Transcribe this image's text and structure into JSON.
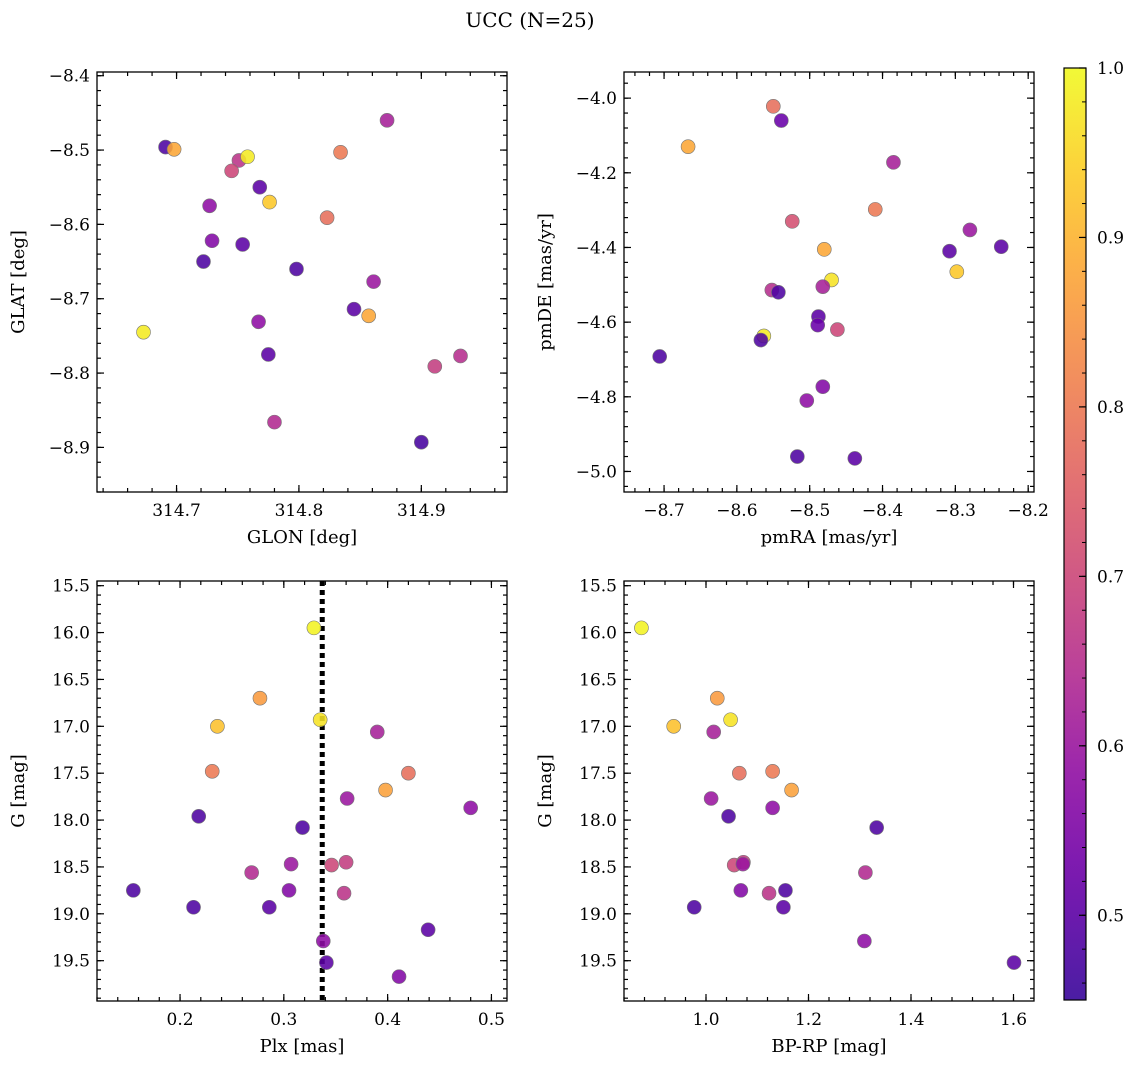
{
  "figure": {
    "title": "UCC (N=25)"
  },
  "colorbar": {
    "colormap": "plasma",
    "range": [
      0.45,
      1.0
    ],
    "ticks": [
      "0.5",
      "0.6",
      "0.7",
      "0.8",
      "0.9",
      "1.0"
    ],
    "tick_values": [
      0.5,
      0.6,
      0.7,
      0.8,
      0.9,
      1.0
    ]
  },
  "chart_data": [
    {
      "type": "scatter",
      "xlabel": "GLON [deg]",
      "ylabel": "GLAT [deg]",
      "xlim": [
        314.635,
        314.97
      ],
      "ylim": [
        -8.96,
        -8.395
      ],
      "xticks": [
        314.7,
        314.8,
        314.9
      ],
      "xtick_labels": [
        "314.7",
        "314.8",
        "314.9"
      ],
      "yticks": [
        -8.4,
        -8.5,
        -8.6,
        -8.7,
        -8.8,
        -8.9
      ],
      "ytick_labels": [
        "−8.4",
        "−8.5",
        "−8.6",
        "−8.7",
        "−8.8",
        "−8.9"
      ],
      "points": [
        {
          "x": 314.691,
          "y": -8.496,
          "c": 0.48
        },
        {
          "x": 314.698,
          "y": -8.499,
          "c": 0.88
        },
        {
          "x": 314.751,
          "y": -8.514,
          "c": 0.66
        },
        {
          "x": 314.758,
          "y": -8.509,
          "c": 0.98
        },
        {
          "x": 314.745,
          "y": -8.528,
          "c": 0.7
        },
        {
          "x": 314.834,
          "y": -8.503,
          "c": 0.8
        },
        {
          "x": 314.872,
          "y": -8.46,
          "c": 0.62
        },
        {
          "x": 314.768,
          "y": -8.55,
          "c": 0.5
        },
        {
          "x": 314.776,
          "y": -8.57,
          "c": 0.93
        },
        {
          "x": 314.727,
          "y": -8.575,
          "c": 0.58
        },
        {
          "x": 314.823,
          "y": -8.591,
          "c": 0.78
        },
        {
          "x": 314.729,
          "y": -8.622,
          "c": 0.56
        },
        {
          "x": 314.754,
          "y": -8.627,
          "c": 0.5
        },
        {
          "x": 314.722,
          "y": -8.65,
          "c": 0.48
        },
        {
          "x": 314.798,
          "y": -8.66,
          "c": 0.48
        },
        {
          "x": 314.861,
          "y": -8.677,
          "c": 0.6
        },
        {
          "x": 314.845,
          "y": -8.714,
          "c": 0.5
        },
        {
          "x": 314.857,
          "y": -8.723,
          "c": 0.88
        },
        {
          "x": 314.767,
          "y": -8.731,
          "c": 0.58
        },
        {
          "x": 314.673,
          "y": -8.745,
          "c": 0.98
        },
        {
          "x": 314.775,
          "y": -8.775,
          "c": 0.5
        },
        {
          "x": 314.932,
          "y": -8.777,
          "c": 0.65
        },
        {
          "x": 314.911,
          "y": -8.791,
          "c": 0.68
        },
        {
          "x": 314.78,
          "y": -8.866,
          "c": 0.64
        },
        {
          "x": 314.9,
          "y": -8.893,
          "c": 0.47
        }
      ]
    },
    {
      "type": "scatter",
      "xlabel": "pmRA [mas/yr]",
      "ylabel": "pmDE [mas/yr]",
      "xlim": [
        -8.755,
        -8.192
      ],
      "ylim": [
        -5.055,
        -3.93
      ],
      "xticks": [
        -8.7,
        -8.6,
        -8.5,
        -8.4,
        -8.3,
        -8.2
      ],
      "xtick_labels": [
        "−8.7",
        "−8.6",
        "−8.5",
        "−8.4",
        "−8.3",
        "−8.2"
      ],
      "yticks": [
        -4.0,
        -4.2,
        -4.4,
        -4.6,
        -4.8,
        -5.0
      ],
      "ytick_labels": [
        "−4.0",
        "−4.2",
        "−4.4",
        "−4.6",
        "−4.8",
        "−5.0"
      ],
      "points": [
        {
          "x": -8.55,
          "y": -4.022,
          "c": 0.78
        },
        {
          "x": -8.539,
          "y": -4.06,
          "c": 0.52
        },
        {
          "x": -8.667,
          "y": -4.13,
          "c": 0.88
        },
        {
          "x": -8.385,
          "y": -4.172,
          "c": 0.62
        },
        {
          "x": -8.41,
          "y": -4.298,
          "c": 0.8
        },
        {
          "x": -8.524,
          "y": -4.33,
          "c": 0.72
        },
        {
          "x": -8.28,
          "y": -4.353,
          "c": 0.6
        },
        {
          "x": -8.308,
          "y": -4.41,
          "c": 0.5
        },
        {
          "x": -8.237,
          "y": -4.398,
          "c": 0.5
        },
        {
          "x": -8.48,
          "y": -4.405,
          "c": 0.88
        },
        {
          "x": -8.298,
          "y": -4.465,
          "c": 0.93
        },
        {
          "x": -8.47,
          "y": -4.487,
          "c": 0.97
        },
        {
          "x": -8.552,
          "y": -4.514,
          "c": 0.65
        },
        {
          "x": -8.543,
          "y": -4.52,
          "c": 0.48
        },
        {
          "x": -8.482,
          "y": -4.505,
          "c": 0.62
        },
        {
          "x": -8.488,
          "y": -4.585,
          "c": 0.5
        },
        {
          "x": -8.489,
          "y": -4.608,
          "c": 0.52
        },
        {
          "x": -8.462,
          "y": -4.62,
          "c": 0.7
        },
        {
          "x": -8.563,
          "y": -4.637,
          "c": 0.98
        },
        {
          "x": -8.567,
          "y": -4.648,
          "c": 0.48
        },
        {
          "x": -8.706,
          "y": -4.692,
          "c": 0.48
        },
        {
          "x": -8.482,
          "y": -4.773,
          "c": 0.56
        },
        {
          "x": -8.504,
          "y": -4.81,
          "c": 0.58
        },
        {
          "x": -8.517,
          "y": -4.96,
          "c": 0.48
        },
        {
          "x": -8.438,
          "y": -4.965,
          "c": 0.5
        }
      ]
    },
    {
      "type": "scatter",
      "xlabel": "Plx [mas]",
      "ylabel": "G [mag]",
      "xlim": [
        0.12,
        0.515
      ],
      "ylim": [
        19.93,
        15.45
      ],
      "xticks": [
        0.2,
        0.3,
        0.4,
        0.5
      ],
      "xtick_labels": [
        "0.2",
        "0.3",
        "0.4",
        "0.5"
      ],
      "yticks": [
        15.5,
        16.0,
        16.5,
        17.0,
        17.5,
        18.0,
        18.5,
        19.0,
        19.5
      ],
      "ytick_labels": [
        "15.5",
        "16.0",
        "16.5",
        "17.0",
        "17.5",
        "18.0",
        "18.5",
        "19.0",
        "19.5"
      ],
      "vline": 0.337,
      "points": [
        {
          "x": 0.329,
          "y": 15.95,
          "c": 0.99
        },
        {
          "x": 0.277,
          "y": 16.7,
          "c": 0.86
        },
        {
          "x": 0.236,
          "y": 17.0,
          "c": 0.92
        },
        {
          "x": 0.335,
          "y": 16.93,
          "c": 0.97
        },
        {
          "x": 0.39,
          "y": 17.06,
          "c": 0.62
        },
        {
          "x": 0.231,
          "y": 17.48,
          "c": 0.8
        },
        {
          "x": 0.42,
          "y": 17.5,
          "c": 0.78
        },
        {
          "x": 0.398,
          "y": 17.68,
          "c": 0.87
        },
        {
          "x": 0.361,
          "y": 17.77,
          "c": 0.6
        },
        {
          "x": 0.48,
          "y": 17.87,
          "c": 0.58
        },
        {
          "x": 0.218,
          "y": 17.96,
          "c": 0.48
        },
        {
          "x": 0.318,
          "y": 18.08,
          "c": 0.48
        },
        {
          "x": 0.307,
          "y": 18.47,
          "c": 0.6
        },
        {
          "x": 0.346,
          "y": 18.48,
          "c": 0.7
        },
        {
          "x": 0.36,
          "y": 18.45,
          "c": 0.68
        },
        {
          "x": 0.269,
          "y": 18.56,
          "c": 0.64
        },
        {
          "x": 0.155,
          "y": 18.75,
          "c": 0.48
        },
        {
          "x": 0.305,
          "y": 18.75,
          "c": 0.56
        },
        {
          "x": 0.358,
          "y": 18.78,
          "c": 0.66
        },
        {
          "x": 0.213,
          "y": 18.93,
          "c": 0.48
        },
        {
          "x": 0.286,
          "y": 18.93,
          "c": 0.5
        },
        {
          "x": 0.439,
          "y": 19.17,
          "c": 0.5
        },
        {
          "x": 0.338,
          "y": 19.29,
          "c": 0.58
        },
        {
          "x": 0.341,
          "y": 19.52,
          "c": 0.5
        },
        {
          "x": 0.411,
          "y": 19.67,
          "c": 0.56
        }
      ]
    },
    {
      "type": "scatter",
      "xlabel": "BP-RP [mag]",
      "ylabel": "G [mag]",
      "xlim": [
        0.84,
        1.64
      ],
      "ylim": [
        19.93,
        15.45
      ],
      "xticks": [
        1.0,
        1.2,
        1.4,
        1.6
      ],
      "xtick_labels": [
        "1.0",
        "1.2",
        "1.4",
        "1.6"
      ],
      "yticks": [
        15.5,
        16.0,
        16.5,
        17.0,
        17.5,
        18.0,
        18.5,
        19.0,
        19.5
      ],
      "ytick_labels": [
        "15.5",
        "16.0",
        "16.5",
        "17.0",
        "17.5",
        "18.0",
        "18.5",
        "19.0",
        "19.5"
      ],
      "points": [
        {
          "x": 0.874,
          "y": 15.95,
          "c": 0.99
        },
        {
          "x": 1.022,
          "y": 16.7,
          "c": 0.86
        },
        {
          "x": 0.937,
          "y": 17.0,
          "c": 0.92
        },
        {
          "x": 1.048,
          "y": 16.93,
          "c": 0.97
        },
        {
          "x": 1.015,
          "y": 17.06,
          "c": 0.62
        },
        {
          "x": 1.065,
          "y": 17.5,
          "c": 0.78
        },
        {
          "x": 1.13,
          "y": 17.48,
          "c": 0.8
        },
        {
          "x": 1.167,
          "y": 17.68,
          "c": 0.87
        },
        {
          "x": 1.01,
          "y": 17.77,
          "c": 0.6
        },
        {
          "x": 1.13,
          "y": 17.87,
          "c": 0.58
        },
        {
          "x": 1.044,
          "y": 17.96,
          "c": 0.48
        },
        {
          "x": 1.333,
          "y": 18.08,
          "c": 0.48
        },
        {
          "x": 1.055,
          "y": 18.48,
          "c": 0.7
        },
        {
          "x": 1.073,
          "y": 18.45,
          "c": 0.68
        },
        {
          "x": 1.072,
          "y": 18.47,
          "c": 0.6
        },
        {
          "x": 1.311,
          "y": 18.56,
          "c": 0.64
        },
        {
          "x": 1.155,
          "y": 18.75,
          "c": 0.48
        },
        {
          "x": 1.068,
          "y": 18.75,
          "c": 0.56
        },
        {
          "x": 1.123,
          "y": 18.78,
          "c": 0.66
        },
        {
          "x": 0.977,
          "y": 18.93,
          "c": 0.48
        },
        {
          "x": 1.151,
          "y": 18.93,
          "c": 0.5
        },
        {
          "x": 1.309,
          "y": 19.29,
          "c": 0.58
        },
        {
          "x": 1.601,
          "y": 19.52,
          "c": 0.5
        }
      ]
    }
  ]
}
